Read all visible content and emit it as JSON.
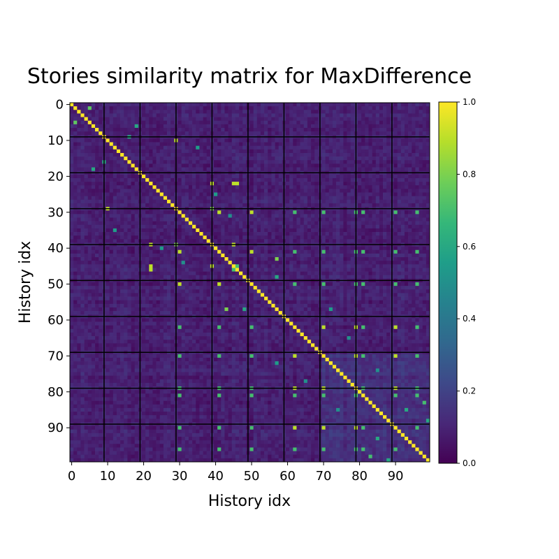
{
  "chart_data": {
    "type": "heatmap",
    "title": "Stories similarity matrix for MaxDifference",
    "xlabel": "History idx",
    "ylabel": "History idx",
    "size": 100,
    "xticks": [
      0,
      10,
      20,
      30,
      40,
      50,
      60,
      70,
      80,
      90
    ],
    "yticks": [
      0,
      10,
      20,
      30,
      40,
      50,
      60,
      70,
      80,
      90
    ],
    "group_boundaries": [
      10,
      20,
      30,
      40,
      50,
      60,
      70,
      80,
      90
    ],
    "colorbar": {
      "min": 0.0,
      "max": 1.0,
      "ticks": [
        "0.0",
        "0.2",
        "0.4",
        "0.6",
        "0.8",
        "1.0"
      ]
    },
    "colormap": [
      "#440154",
      "#482878",
      "#3e4989",
      "#31688e",
      "#26828e",
      "#1f9e89",
      "#35b779",
      "#6ece58",
      "#b5de2b",
      "#fde725"
    ],
    "diagonal_value": 1.0,
    "background_range": [
      0.02,
      0.16
    ],
    "high_pairs": [
      [
        30,
        41,
        0.9
      ],
      [
        30,
        50,
        0.9
      ],
      [
        30,
        62,
        0.7
      ],
      [
        30,
        70,
        0.7
      ],
      [
        30,
        79,
        0.7
      ],
      [
        30,
        81,
        0.7
      ],
      [
        30,
        90,
        0.7
      ],
      [
        30,
        96,
        0.7
      ],
      [
        41,
        50,
        0.9
      ],
      [
        41,
        62,
        0.7
      ],
      [
        41,
        70,
        0.7
      ],
      [
        41,
        79,
        0.7
      ],
      [
        41,
        81,
        0.7
      ],
      [
        41,
        90,
        0.7
      ],
      [
        41,
        96,
        0.7
      ],
      [
        50,
        62,
        0.7
      ],
      [
        50,
        70,
        0.7
      ],
      [
        50,
        79,
        0.7
      ],
      [
        50,
        81,
        0.7
      ],
      [
        50,
        90,
        0.7
      ],
      [
        50,
        96,
        0.7
      ],
      [
        62,
        70,
        0.9
      ],
      [
        62,
        79,
        0.9
      ],
      [
        62,
        90,
        0.9
      ],
      [
        62,
        81,
        0.7
      ],
      [
        62,
        96,
        0.7
      ],
      [
        70,
        79,
        0.9
      ],
      [
        70,
        90,
        0.9
      ],
      [
        70,
        81,
        0.7
      ],
      [
        70,
        96,
        0.7
      ],
      [
        79,
        90,
        0.9
      ],
      [
        79,
        81,
        0.7
      ],
      [
        79,
        96,
        0.7
      ],
      [
        81,
        90,
        0.7
      ],
      [
        81,
        96,
        0.7
      ],
      [
        90,
        96,
        0.7
      ],
      [
        10,
        29,
        0.9
      ],
      [
        22,
        39,
        0.9
      ],
      [
        22,
        45,
        0.9
      ],
      [
        22,
        46,
        0.9
      ],
      [
        29,
        39,
        0.8
      ],
      [
        39,
        45,
        0.9
      ],
      [
        45,
        46,
        0.7
      ],
      [
        1,
        5,
        0.75
      ],
      [
        6,
        18,
        0.6
      ],
      [
        9,
        16,
        0.6
      ],
      [
        12,
        35,
        0.55
      ],
      [
        25,
        40,
        0.55
      ],
      [
        31,
        44,
        0.5
      ],
      [
        43,
        57,
        0.8
      ],
      [
        48,
        57,
        0.6
      ],
      [
        57,
        72,
        0.55
      ],
      [
        83,
        98,
        0.7
      ],
      [
        88,
        99,
        0.6
      ],
      [
        85,
        93,
        0.6
      ],
      [
        74,
        85,
        0.5
      ],
      [
        65,
        77,
        0.5
      ]
    ]
  }
}
